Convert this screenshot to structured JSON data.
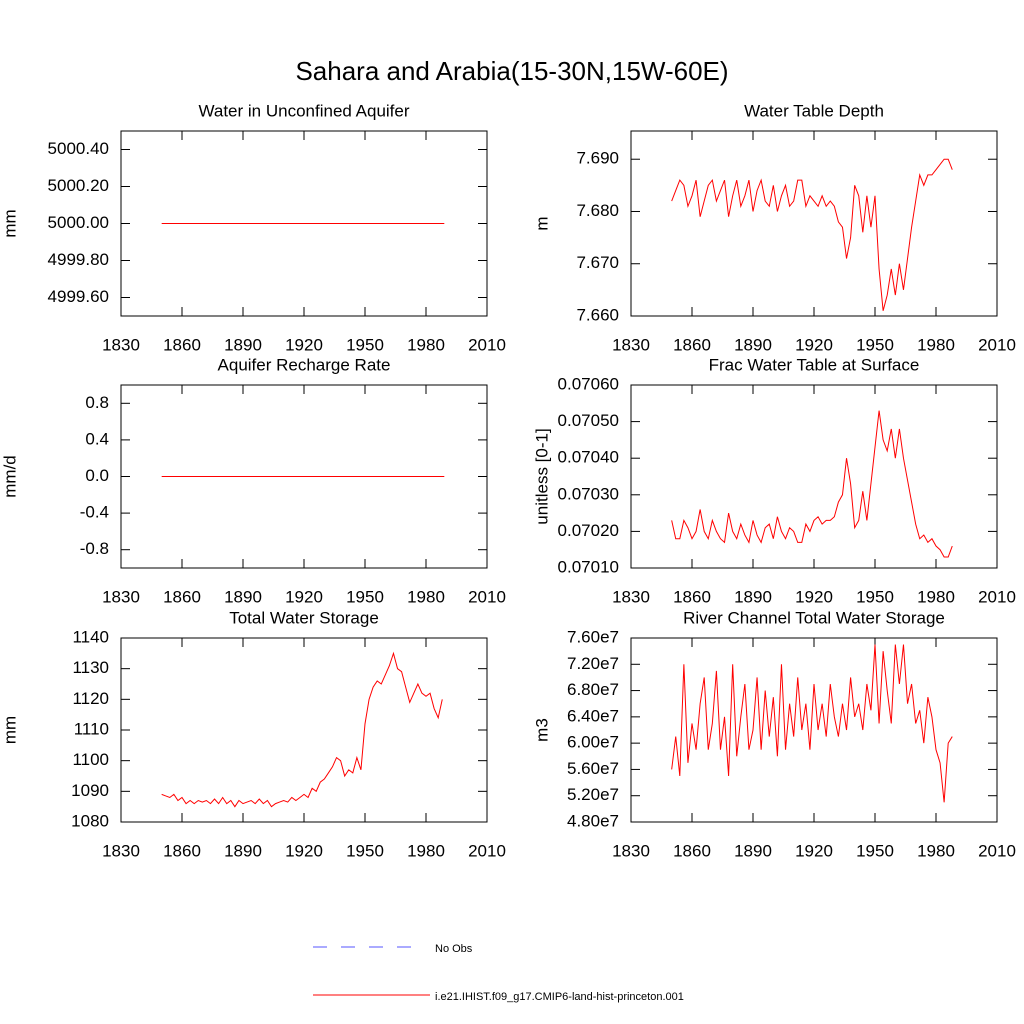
{
  "title": "Sahara and Arabia(15-30N,15W-60E)",
  "legend": [
    {
      "name": "No Obs",
      "color": "#5555ff",
      "dashed": true
    },
    {
      "name": "i.e21.IHIST.f09_g17.CMIP6-land-hist-princeton.001",
      "color": "#ff0000",
      "dashed": false
    }
  ],
  "chart_data": [
    {
      "type": "line",
      "title": "Water in Unconfined Aquifer",
      "y_label": "mm",
      "xlim": [
        1830,
        2010
      ],
      "xticks": [
        1830,
        1860,
        1890,
        1920,
        1950,
        1980,
        2010
      ],
      "ylim": [
        4999.5,
        5000.5
      ],
      "yticks": [
        {
          "value": 4999.6,
          "label": "4999.60"
        },
        {
          "value": 4999.8,
          "label": "4999.80"
        },
        {
          "value": 5000,
          "label": "5000.00"
        },
        {
          "value": 5000.2,
          "label": "5000.20"
        },
        {
          "value": 5000.4,
          "label": "5000.40"
        }
      ],
      "x": [
        1850,
        1989
      ],
      "series": [
        {
          "color": "#ff0000",
          "values": [
            5000,
            5000
          ]
        }
      ]
    },
    {
      "type": "line",
      "title": "Water Table Depth",
      "y_label": "m",
      "xlim": [
        1830,
        2010
      ],
      "xticks": [
        1830,
        1860,
        1890,
        1920,
        1950,
        1980,
        2010
      ],
      "ylim": [
        7.66,
        7.6954
      ],
      "yticks": [
        {
          "value": 7.66,
          "label": "7.660"
        },
        {
          "value": 7.67,
          "label": "7.670"
        },
        {
          "value": 7.68,
          "label": "7.680"
        },
        {
          "value": 7.69,
          "label": "7.690"
        }
      ],
      "x": [
        1850,
        1852,
        1854,
        1856,
        1858,
        1860,
        1862,
        1864,
        1866,
        1868,
        1870,
        1872,
        1874,
        1876,
        1878,
        1880,
        1882,
        1884,
        1886,
        1888,
        1890,
        1892,
        1894,
        1896,
        1898,
        1900,
        1902,
        1904,
        1906,
        1908,
        1910,
        1912,
        1914,
        1916,
        1918,
        1920,
        1922,
        1924,
        1926,
        1928,
        1930,
        1932,
        1934,
        1936,
        1938,
        1940,
        1942,
        1944,
        1946,
        1948,
        1950,
        1952,
        1954,
        1956,
        1958,
        1960,
        1962,
        1964,
        1966,
        1968,
        1970,
        1972,
        1974,
        1976,
        1978,
        1980,
        1982,
        1984,
        1986,
        1988
      ],
      "series": [
        {
          "color": "#ff0000",
          "values": [
            7.682,
            7.684,
            7.686,
            7.685,
            7.681,
            7.683,
            7.686,
            7.679,
            7.682,
            7.685,
            7.686,
            7.682,
            7.684,
            7.686,
            7.679,
            7.683,
            7.686,
            7.681,
            7.683,
            7.686,
            7.68,
            7.684,
            7.686,
            7.682,
            7.681,
            7.685,
            7.68,
            7.683,
            7.685,
            7.681,
            7.682,
            7.686,
            7.686,
            7.681,
            7.683,
            7.682,
            7.681,
            7.683,
            7.681,
            7.682,
            7.681,
            7.678,
            7.677,
            7.671,
            7.675,
            7.685,
            7.683,
            7.676,
            7.683,
            7.677,
            7.683,
            7.669,
            7.661,
            7.664,
            7.669,
            7.664,
            7.67,
            7.665,
            7.671,
            7.677,
            7.682,
            7.687,
            7.685,
            7.687,
            7.687,
            7.688,
            7.689,
            7.69,
            7.69,
            7.688
          ]
        }
      ]
    },
    {
      "type": "line",
      "title": "Aquifer Recharge Rate",
      "y_label": "mm/d",
      "xlim": [
        1830,
        2010
      ],
      "xticks": [
        1830,
        1860,
        1890,
        1920,
        1950,
        1980,
        2010
      ],
      "ylim": [
        -1,
        1
      ],
      "yticks": [
        -0.8,
        -0.4,
        {
          "value": 0,
          "label": "0.0"
        },
        0.4,
        0.8
      ],
      "x": [
        1850,
        1989
      ],
      "series": [
        {
          "color": "#ff0000",
          "values": [
            0,
            0
          ]
        }
      ]
    },
    {
      "type": "line",
      "title": "Frac Water Table at Surface",
      "y_label": "unitless [0-1]",
      "xlim": [
        1830,
        2010
      ],
      "xticks": [
        1830,
        1860,
        1890,
        1920,
        1950,
        1980,
        2010
      ],
      "ylim": [
        0.0701,
        0.0706
      ],
      "yticks": [
        {
          "value": 0.0701,
          "label": "0.07010"
        },
        {
          "value": 0.0702,
          "label": "0.07020"
        },
        {
          "value": 0.0703,
          "label": "0.07030"
        },
        {
          "value": 0.0704,
          "label": "0.07040"
        },
        {
          "value": 0.0705,
          "label": "0.07050"
        },
        {
          "value": 0.0706,
          "label": "0.07060"
        }
      ],
      "x": [
        1850,
        1852,
        1854,
        1856,
        1858,
        1860,
        1862,
        1864,
        1866,
        1868,
        1870,
        1872,
        1874,
        1876,
        1878,
        1880,
        1882,
        1884,
        1886,
        1888,
        1890,
        1892,
        1894,
        1896,
        1898,
        1900,
        1902,
        1904,
        1906,
        1908,
        1910,
        1912,
        1914,
        1916,
        1918,
        1920,
        1922,
        1924,
        1926,
        1928,
        1930,
        1932,
        1934,
        1936,
        1938,
        1940,
        1942,
        1944,
        1946,
        1948,
        1950,
        1952,
        1954,
        1956,
        1958,
        1960,
        1962,
        1964,
        1966,
        1968,
        1970,
        1972,
        1974,
        1976,
        1978,
        1980,
        1982,
        1984,
        1986,
        1988
      ],
      "series": [
        {
          "color": "#ff0000",
          "values": [
            0.07023,
            0.07018,
            0.07018,
            0.07023,
            0.07021,
            0.07018,
            0.0702,
            0.07026,
            0.0702,
            0.07018,
            0.07023,
            0.0702,
            0.07018,
            0.07017,
            0.07025,
            0.0702,
            0.07018,
            0.07022,
            0.07019,
            0.07017,
            0.07023,
            0.07019,
            0.07017,
            0.07021,
            0.07022,
            0.07018,
            0.07024,
            0.0702,
            0.07018,
            0.07021,
            0.0702,
            0.07017,
            0.07017,
            0.07022,
            0.0702,
            0.07023,
            0.07024,
            0.07022,
            0.07023,
            0.07023,
            0.07024,
            0.07028,
            0.0703,
            0.0704,
            0.07033,
            0.07021,
            0.07023,
            0.07031,
            0.07023,
            0.07033,
            0.07043,
            0.07053,
            0.07045,
            0.07042,
            0.07048,
            0.0704,
            0.07048,
            0.0704,
            0.07034,
            0.07028,
            0.07022,
            0.07018,
            0.07019,
            0.07017,
            0.07018,
            0.07016,
            0.07015,
            0.07013,
            0.07013,
            0.07016
          ]
        }
      ]
    },
    {
      "type": "line",
      "title": "Total Water Storage",
      "y_label": "mm",
      "xlim": [
        1830,
        2010
      ],
      "xticks": [
        1830,
        1860,
        1890,
        1920,
        1950,
        1980,
        2010
      ],
      "ylim": [
        1080,
        1140
      ],
      "yticks": [
        1080,
        1090,
        1100,
        1110,
        1120,
        1130,
        1140
      ],
      "x": [
        1850,
        1852,
        1854,
        1856,
        1858,
        1860,
        1862,
        1864,
        1866,
        1868,
        1870,
        1872,
        1874,
        1876,
        1878,
        1880,
        1882,
        1884,
        1886,
        1888,
        1890,
        1892,
        1894,
        1896,
        1898,
        1900,
        1902,
        1904,
        1906,
        1908,
        1910,
        1912,
        1914,
        1916,
        1918,
        1920,
        1922,
        1924,
        1926,
        1928,
        1930,
        1932,
        1934,
        1936,
        1938,
        1940,
        1942,
        1944,
        1946,
        1948,
        1950,
        1952,
        1954,
        1956,
        1958,
        1960,
        1962,
        1964,
        1966,
        1968,
        1970,
        1972,
        1974,
        1976,
        1978,
        1980,
        1982,
        1984,
        1986,
        1988
      ],
      "series": [
        {
          "color": "#ff0000",
          "values": [
            1089,
            1088.5,
            1088,
            1089,
            1087,
            1088,
            1086,
            1087,
            1086,
            1087,
            1086.5,
            1087,
            1086,
            1087.5,
            1086,
            1088,
            1086,
            1087,
            1085,
            1087,
            1086,
            1086.5,
            1087,
            1086,
            1087.5,
            1086,
            1087,
            1085,
            1086,
            1086.5,
            1087,
            1086.5,
            1088,
            1087,
            1088,
            1089,
            1088,
            1091,
            1090,
            1093,
            1094,
            1096,
            1098,
            1101,
            1100,
            1095,
            1097,
            1096,
            1101,
            1097,
            1112,
            1120,
            1124,
            1126,
            1125,
            1128,
            1131,
            1135,
            1130,
            1129,
            1124,
            1119,
            1122,
            1125,
            1122,
            1121,
            1122,
            1117,
            1114,
            1120
          ]
        }
      ]
    },
    {
      "type": "line",
      "title": "River Channel Total Water Storage",
      "y_label": "m3",
      "xlim": [
        1830,
        2010
      ],
      "xticks": [
        1830,
        1860,
        1890,
        1920,
        1950,
        1980,
        2010
      ],
      "ylim": [
        48000000,
        76000000
      ],
      "yticks": [
        {
          "value": 48000000,
          "label": "4.80e7"
        },
        {
          "value": 52000000,
          "label": "5.20e7"
        },
        {
          "value": 56000000,
          "label": "5.60e7"
        },
        {
          "value": 60000000,
          "label": "6.00e7"
        },
        {
          "value": 64000000,
          "label": "6.40e7"
        },
        {
          "value": 68000000,
          "label": "6.80e7"
        },
        {
          "value": 72000000,
          "label": "7.20e7"
        },
        {
          "value": 76000000,
          "label": "7.60e7"
        }
      ],
      "x": [
        1850,
        1852,
        1854,
        1856,
        1858,
        1860,
        1862,
        1864,
        1866,
        1868,
        1870,
        1872,
        1874,
        1876,
        1878,
        1880,
        1882,
        1884,
        1886,
        1888,
        1890,
        1892,
        1894,
        1896,
        1898,
        1900,
        1902,
        1904,
        1906,
        1908,
        1910,
        1912,
        1914,
        1916,
        1918,
        1920,
        1922,
        1924,
        1926,
        1928,
        1930,
        1932,
        1934,
        1936,
        1938,
        1940,
        1942,
        1944,
        1946,
        1948,
        1950,
        1952,
        1954,
        1956,
        1958,
        1960,
        1962,
        1964,
        1966,
        1968,
        1970,
        1972,
        1974,
        1976,
        1978,
        1980,
        1982,
        1984,
        1986,
        1988
      ],
      "series": [
        {
          "color": "#ff0000",
          "values": [
            56000000,
            61000000,
            55000000,
            72000000,
            57000000,
            63000000,
            59000000,
            66000000,
            70000000,
            59000000,
            63000000,
            71000000,
            59000000,
            64000000,
            55000000,
            72000000,
            58000000,
            64000000,
            69000000,
            59000000,
            62000000,
            70000000,
            59000000,
            68000000,
            61000000,
            67000000,
            58000000,
            72000000,
            59000000,
            66000000,
            61000000,
            70000000,
            62000000,
            66000000,
            59000000,
            69000000,
            62000000,
            66000000,
            61000000,
            69000000,
            64000000,
            61000000,
            66000000,
            62000000,
            70000000,
            64000000,
            66000000,
            62000000,
            69000000,
            65000000,
            75000000,
            63000000,
            74000000,
            68000000,
            63000000,
            75000000,
            69000000,
            75000000,
            66000000,
            69000000,
            63000000,
            65000000,
            60000000,
            67000000,
            64000000,
            59000000,
            57000000,
            51000000,
            60000000,
            61000000
          ]
        }
      ]
    }
  ]
}
